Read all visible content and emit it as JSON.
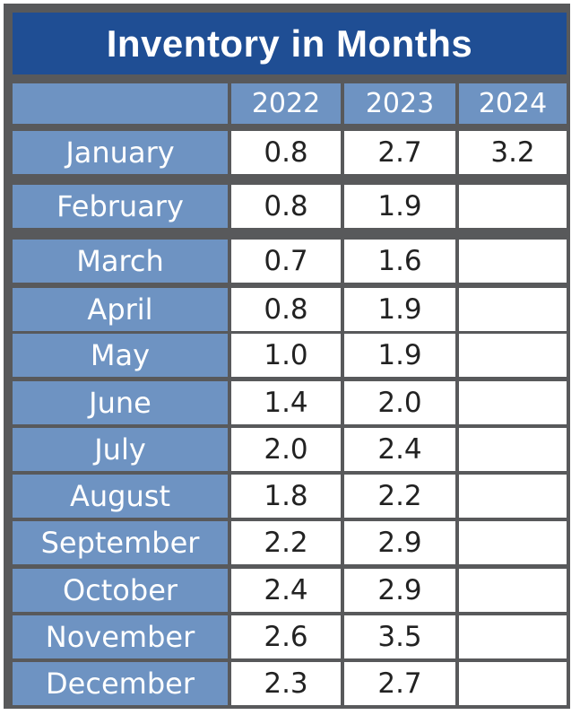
{
  "title": "Inventory in Months",
  "chart_data": {
    "type": "table",
    "title": "Inventory in Months",
    "columns": [
      "2022",
      "2023",
      "2024"
    ],
    "rows": [
      {
        "month": "January",
        "values": [
          "0.8",
          "2.7",
          "3.2"
        ]
      },
      {
        "month": "February",
        "values": [
          "0.8",
          "1.9",
          ""
        ]
      },
      {
        "month": "March",
        "values": [
          "0.7",
          "1.6",
          ""
        ]
      },
      {
        "month": "April",
        "values": [
          "0.8",
          "1.9",
          ""
        ]
      },
      {
        "month": "May",
        "values": [
          "1.0",
          "1.9",
          ""
        ]
      },
      {
        "month": "June",
        "values": [
          "1.4",
          "2.0",
          ""
        ]
      },
      {
        "month": "July",
        "values": [
          "2.0",
          "2.4",
          ""
        ]
      },
      {
        "month": "August",
        "values": [
          "1.8",
          "2.2",
          ""
        ]
      },
      {
        "month": "September",
        "values": [
          "2.2",
          "2.9",
          ""
        ]
      },
      {
        "month": "October",
        "values": [
          "2.4",
          "2.9",
          ""
        ]
      },
      {
        "month": "November",
        "values": [
          "2.6",
          "3.5",
          ""
        ]
      },
      {
        "month": "December",
        "values": [
          "2.3",
          "2.7",
          ""
        ]
      }
    ]
  },
  "colors": {
    "frame": "#58595b",
    "title_bg": "#1f4e94",
    "header_bg": "#6e93c2",
    "cell_bg": "#ffffff"
  }
}
